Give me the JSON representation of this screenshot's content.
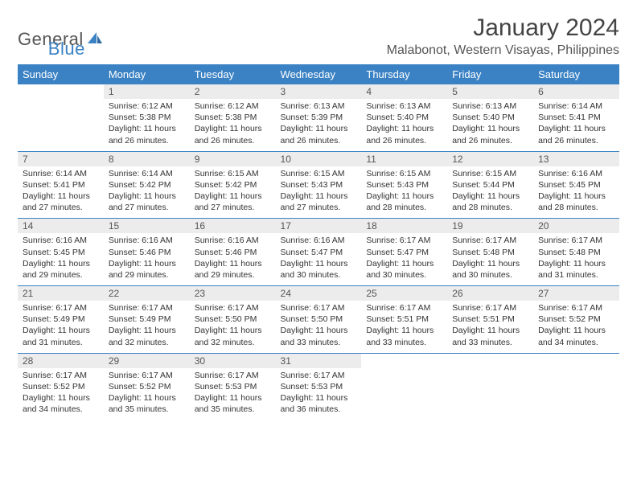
{
  "logo": {
    "word1": "General",
    "word2": "Blue"
  },
  "title": "January 2024",
  "location": "Malabonot, Western Visayas, Philippines",
  "colors": {
    "header_bg": "#3b82c4",
    "header_text": "#ffffff",
    "daynum_bg": "#ececec",
    "rule": "#3b82c4",
    "text": "#333333"
  },
  "day_headers": [
    "Sunday",
    "Monday",
    "Tuesday",
    "Wednesday",
    "Thursday",
    "Friday",
    "Saturday"
  ],
  "weeks": [
    [
      {
        "n": "",
        "sr": "",
        "ss": "",
        "dl": ""
      },
      {
        "n": "1",
        "sr": "Sunrise: 6:12 AM",
        "ss": "Sunset: 5:38 PM",
        "dl": "Daylight: 11 hours and 26 minutes."
      },
      {
        "n": "2",
        "sr": "Sunrise: 6:12 AM",
        "ss": "Sunset: 5:38 PM",
        "dl": "Daylight: 11 hours and 26 minutes."
      },
      {
        "n": "3",
        "sr": "Sunrise: 6:13 AM",
        "ss": "Sunset: 5:39 PM",
        "dl": "Daylight: 11 hours and 26 minutes."
      },
      {
        "n": "4",
        "sr": "Sunrise: 6:13 AM",
        "ss": "Sunset: 5:40 PM",
        "dl": "Daylight: 11 hours and 26 minutes."
      },
      {
        "n": "5",
        "sr": "Sunrise: 6:13 AM",
        "ss": "Sunset: 5:40 PM",
        "dl": "Daylight: 11 hours and 26 minutes."
      },
      {
        "n": "6",
        "sr": "Sunrise: 6:14 AM",
        "ss": "Sunset: 5:41 PM",
        "dl": "Daylight: 11 hours and 26 minutes."
      }
    ],
    [
      {
        "n": "7",
        "sr": "Sunrise: 6:14 AM",
        "ss": "Sunset: 5:41 PM",
        "dl": "Daylight: 11 hours and 27 minutes."
      },
      {
        "n": "8",
        "sr": "Sunrise: 6:14 AM",
        "ss": "Sunset: 5:42 PM",
        "dl": "Daylight: 11 hours and 27 minutes."
      },
      {
        "n": "9",
        "sr": "Sunrise: 6:15 AM",
        "ss": "Sunset: 5:42 PM",
        "dl": "Daylight: 11 hours and 27 minutes."
      },
      {
        "n": "10",
        "sr": "Sunrise: 6:15 AM",
        "ss": "Sunset: 5:43 PM",
        "dl": "Daylight: 11 hours and 27 minutes."
      },
      {
        "n": "11",
        "sr": "Sunrise: 6:15 AM",
        "ss": "Sunset: 5:43 PM",
        "dl": "Daylight: 11 hours and 28 minutes."
      },
      {
        "n": "12",
        "sr": "Sunrise: 6:15 AM",
        "ss": "Sunset: 5:44 PM",
        "dl": "Daylight: 11 hours and 28 minutes."
      },
      {
        "n": "13",
        "sr": "Sunrise: 6:16 AM",
        "ss": "Sunset: 5:45 PM",
        "dl": "Daylight: 11 hours and 28 minutes."
      }
    ],
    [
      {
        "n": "14",
        "sr": "Sunrise: 6:16 AM",
        "ss": "Sunset: 5:45 PM",
        "dl": "Daylight: 11 hours and 29 minutes."
      },
      {
        "n": "15",
        "sr": "Sunrise: 6:16 AM",
        "ss": "Sunset: 5:46 PM",
        "dl": "Daylight: 11 hours and 29 minutes."
      },
      {
        "n": "16",
        "sr": "Sunrise: 6:16 AM",
        "ss": "Sunset: 5:46 PM",
        "dl": "Daylight: 11 hours and 29 minutes."
      },
      {
        "n": "17",
        "sr": "Sunrise: 6:16 AM",
        "ss": "Sunset: 5:47 PM",
        "dl": "Daylight: 11 hours and 30 minutes."
      },
      {
        "n": "18",
        "sr": "Sunrise: 6:17 AM",
        "ss": "Sunset: 5:47 PM",
        "dl": "Daylight: 11 hours and 30 minutes."
      },
      {
        "n": "19",
        "sr": "Sunrise: 6:17 AM",
        "ss": "Sunset: 5:48 PM",
        "dl": "Daylight: 11 hours and 30 minutes."
      },
      {
        "n": "20",
        "sr": "Sunrise: 6:17 AM",
        "ss": "Sunset: 5:48 PM",
        "dl": "Daylight: 11 hours and 31 minutes."
      }
    ],
    [
      {
        "n": "21",
        "sr": "Sunrise: 6:17 AM",
        "ss": "Sunset: 5:49 PM",
        "dl": "Daylight: 11 hours and 31 minutes."
      },
      {
        "n": "22",
        "sr": "Sunrise: 6:17 AM",
        "ss": "Sunset: 5:49 PM",
        "dl": "Daylight: 11 hours and 32 minutes."
      },
      {
        "n": "23",
        "sr": "Sunrise: 6:17 AM",
        "ss": "Sunset: 5:50 PM",
        "dl": "Daylight: 11 hours and 32 minutes."
      },
      {
        "n": "24",
        "sr": "Sunrise: 6:17 AM",
        "ss": "Sunset: 5:50 PM",
        "dl": "Daylight: 11 hours and 33 minutes."
      },
      {
        "n": "25",
        "sr": "Sunrise: 6:17 AM",
        "ss": "Sunset: 5:51 PM",
        "dl": "Daylight: 11 hours and 33 minutes."
      },
      {
        "n": "26",
        "sr": "Sunrise: 6:17 AM",
        "ss": "Sunset: 5:51 PM",
        "dl": "Daylight: 11 hours and 33 minutes."
      },
      {
        "n": "27",
        "sr": "Sunrise: 6:17 AM",
        "ss": "Sunset: 5:52 PM",
        "dl": "Daylight: 11 hours and 34 minutes."
      }
    ],
    [
      {
        "n": "28",
        "sr": "Sunrise: 6:17 AM",
        "ss": "Sunset: 5:52 PM",
        "dl": "Daylight: 11 hours and 34 minutes."
      },
      {
        "n": "29",
        "sr": "Sunrise: 6:17 AM",
        "ss": "Sunset: 5:52 PM",
        "dl": "Daylight: 11 hours and 35 minutes."
      },
      {
        "n": "30",
        "sr": "Sunrise: 6:17 AM",
        "ss": "Sunset: 5:53 PM",
        "dl": "Daylight: 11 hours and 35 minutes."
      },
      {
        "n": "31",
        "sr": "Sunrise: 6:17 AM",
        "ss": "Sunset: 5:53 PM",
        "dl": "Daylight: 11 hours and 36 minutes."
      },
      {
        "n": "",
        "sr": "",
        "ss": "",
        "dl": ""
      },
      {
        "n": "",
        "sr": "",
        "ss": "",
        "dl": ""
      },
      {
        "n": "",
        "sr": "",
        "ss": "",
        "dl": ""
      }
    ]
  ]
}
